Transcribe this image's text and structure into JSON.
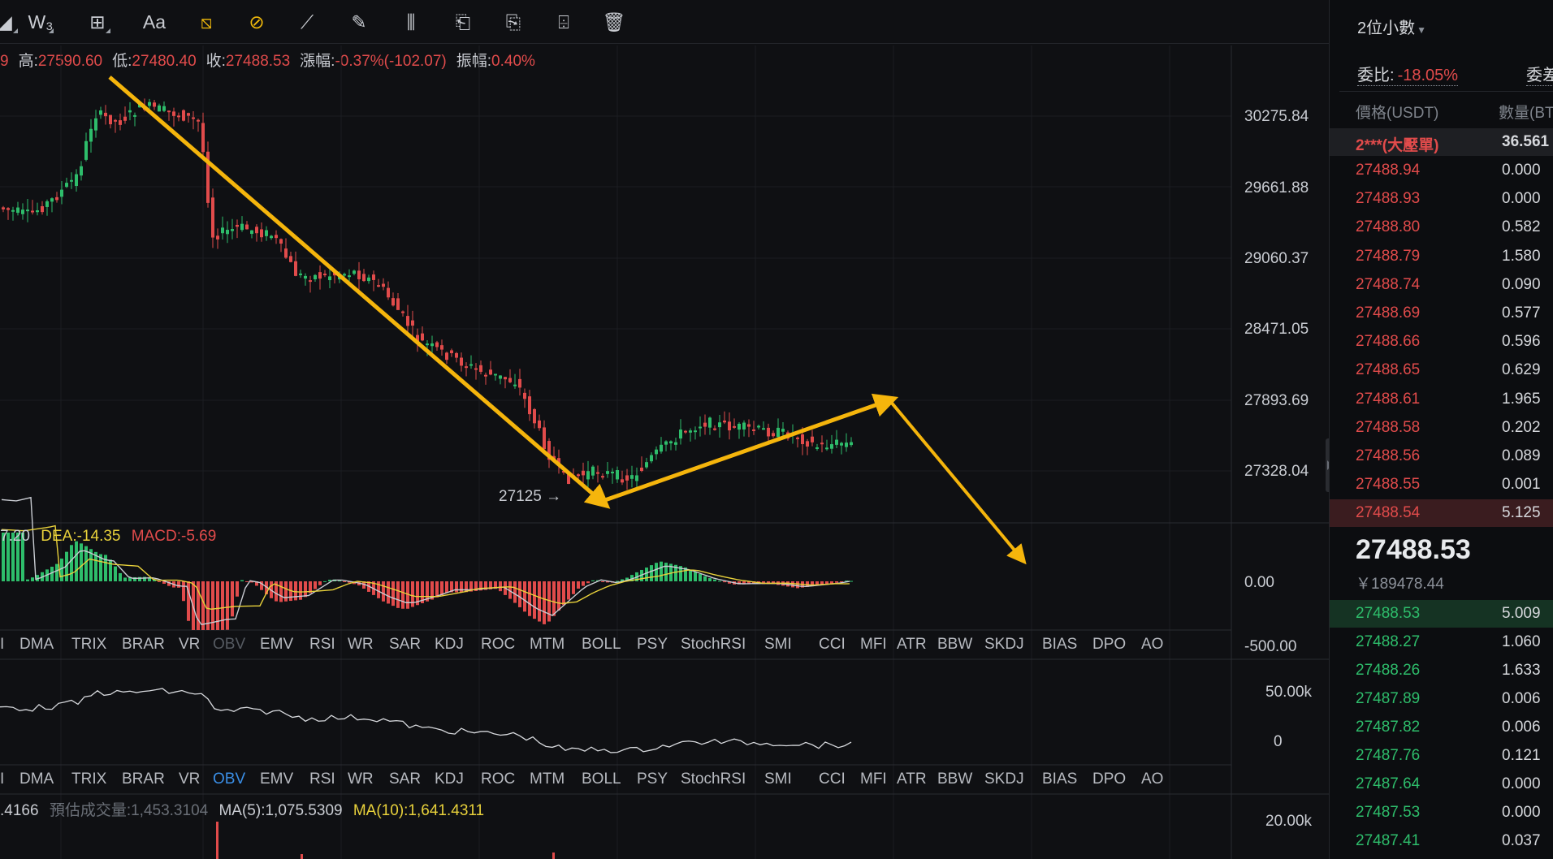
{
  "toolbar": {
    "tools": [
      {
        "name": "fib-tool-icon",
        "glyph": "◢"
      },
      {
        "name": "wave-tool-icon",
        "glyph": "W₃"
      },
      {
        "name": "measure-tool-icon",
        "glyph": "⊞"
      },
      {
        "name": "text-tool-icon",
        "glyph": "Aa"
      },
      {
        "name": "magnet-tool-icon",
        "glyph": "⧅"
      },
      {
        "name": "lock-drawing-icon",
        "glyph": "⊘"
      },
      {
        "name": "ruler-icon",
        "glyph": "⟋"
      },
      {
        "name": "pencil-icon",
        "glyph": "✎"
      },
      {
        "name": "indicator-icon",
        "glyph": "⫼"
      },
      {
        "name": "layer-icon",
        "glyph": "⎗"
      },
      {
        "name": "bookmark-icon",
        "glyph": "⎘"
      },
      {
        "name": "edit-note-icon",
        "glyph": "⌹"
      },
      {
        "name": "trash-icon",
        "glyph": "🗑"
      }
    ]
  },
  "ohlc": {
    "prefix": "9",
    "high_label": "高:",
    "high": "27590.60",
    "low_label": "低:",
    "low": "27480.40",
    "close_label": "收:",
    "close": "27488.53",
    "change_label": "漲幅:",
    "change": "-0.37%(-102.07)",
    "amplitude_label": "振幅:",
    "amplitude": "0.40%"
  },
  "price_axis": [
    "30275.84",
    "29661.88",
    "29060.37",
    "28471.05",
    "27893.69",
    "27328.04"
  ],
  "annotation_low": "27125 →",
  "macd": {
    "dif_fragment": "7.20",
    "dea": "DEA:-14.35",
    "macd": "MACD:-5.69",
    "axis": [
      "0.00",
      "-500.00"
    ]
  },
  "obv": {
    "axis": [
      "50.00k",
      "0"
    ]
  },
  "indicator_tabs": [
    "I",
    "DMA",
    "TRIX",
    "BRAR",
    "VR",
    "OBV",
    "EMV",
    "RSI",
    "WR",
    "SAR",
    "KDJ",
    "ROC",
    "MTM",
    "BOLL",
    "PSY",
    "StochRSI",
    "SMI",
    "CCI",
    "MFI",
    "ATR",
    "BBW",
    "SKDJ",
    "BIAS",
    "DPO",
    "AO"
  ],
  "volume": {
    "current": ".4166",
    "est_label": "預估成交量:",
    "est": "1,453.3104",
    "ma5": "MA(5):1,075.5309",
    "ma10": "MA(10):1,641.4311",
    "axis": "20.00k"
  },
  "orderbook": {
    "decimals": "2位小數",
    "ratio_label": "委比:",
    "ratio": "-18.05%",
    "diff_label": "委差",
    "header_price": "價格(USDT)",
    "header_qty": "數量(BT",
    "big_order": {
      "price": "2***(大壓單)",
      "qty": "36.561"
    },
    "asks": [
      {
        "price": "27488.94",
        "qty": "0.000"
      },
      {
        "price": "27488.93",
        "qty": "0.000"
      },
      {
        "price": "27488.80",
        "qty": "0.582"
      },
      {
        "price": "27488.79",
        "qty": "1.580"
      },
      {
        "price": "27488.74",
        "qty": "0.090"
      },
      {
        "price": "27488.69",
        "qty": "0.577"
      },
      {
        "price": "27488.66",
        "qty": "0.596"
      },
      {
        "price": "27488.65",
        "qty": "0.629"
      },
      {
        "price": "27488.61",
        "qty": "1.965"
      },
      {
        "price": "27488.58",
        "qty": "0.202"
      },
      {
        "price": "27488.56",
        "qty": "0.089"
      },
      {
        "price": "27488.55",
        "qty": "0.001"
      },
      {
        "price": "27488.54",
        "qty": "5.125"
      }
    ],
    "last_price": "27488.53",
    "last_price_cny": "￥189478.44",
    "bids": [
      {
        "price": "27488.53",
        "qty": "5.009"
      },
      {
        "price": "27488.27",
        "qty": "1.060"
      },
      {
        "price": "27488.26",
        "qty": "1.633"
      },
      {
        "price": "27487.89",
        "qty": "0.006"
      },
      {
        "price": "27487.82",
        "qty": "0.006"
      },
      {
        "price": "27487.76",
        "qty": "0.121"
      },
      {
        "price": "27487.64",
        "qty": "0.000"
      },
      {
        "price": "27487.53",
        "qty": "0.000"
      },
      {
        "price": "27487.41",
        "qty": "0.037"
      }
    ]
  },
  "colors": {
    "up": "#2ebd6b",
    "down": "#e14b4b",
    "drawing": "#f5b50c",
    "dea_line": "#e8d13b",
    "obv_selected": "#3a8ee6"
  }
}
